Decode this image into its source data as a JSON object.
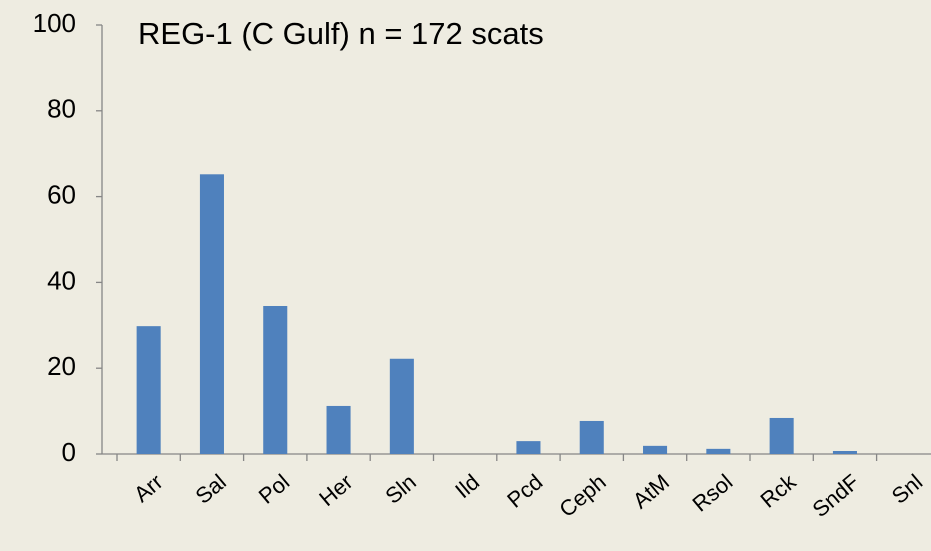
{
  "chart_data": {
    "type": "bar",
    "title": "REG-1 (C Gulf)  n = 172 scats",
    "categories": [
      "Arr",
      "Sal",
      "Pol",
      "Her",
      "Sln",
      "Ild",
      "Pcd",
      "Ceph",
      "AtM",
      "Rsol",
      "Rck",
      "SndF",
      "Snl"
    ],
    "values": [
      29.8,
      65.2,
      34.5,
      11.2,
      22.2,
      0,
      3,
      7.7,
      1.9,
      1.2,
      8.4,
      0.7,
      0
    ],
    "color": "#4f81bd",
    "ylim": [
      0,
      100
    ],
    "yticks": [
      0,
      20,
      40,
      60,
      80,
      100
    ],
    "grid": false
  }
}
